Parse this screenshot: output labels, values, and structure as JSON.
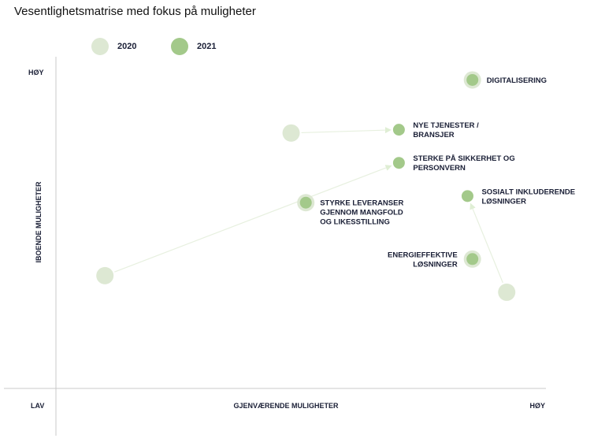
{
  "title": "Vesentlighetsmatrise med fokus på muligheter",
  "chart_data": {
    "type": "scatter",
    "title": "Vesentlighetsmatrise med fokus på muligheter",
    "xlabel": "GJENVÆRENDE MULIGHETER",
    "ylabel": "IBOENDE MULIGHETER",
    "x_tick_labels": {
      "low": "LAV",
      "high": "HØY"
    },
    "y_tick_labels": {
      "high": "HØY"
    },
    "xlim": [
      0,
      100
    ],
    "ylim": [
      0,
      100
    ],
    "legend": {
      "placement": "top-left",
      "entries": [
        "2020",
        "2021"
      ]
    },
    "colors": {
      "2020": "#dde8d3",
      "2021": "#a3c98a",
      "arrow": "#e7f0df"
    },
    "series": [
      {
        "name": "2020",
        "points": [
          {
            "id": "nye-tjenester",
            "x": 48,
            "y": 77
          },
          {
            "id": "sterke-sikkerhet",
            "x": 10,
            "y": 34
          },
          {
            "id": "sosialt-inkluderende",
            "x": 92,
            "y": 29
          },
          {
            "id": "digitalisering",
            "x": 85,
            "y": 93
          },
          {
            "id": "styrke-leveranser",
            "x": 51,
            "y": 56
          },
          {
            "id": "energieffektive",
            "x": 85,
            "y": 39
          }
        ]
      },
      {
        "name": "2021",
        "points": [
          {
            "id": "nye-tjenester",
            "x": 70,
            "y": 78,
            "label": [
              "NYE TJENESTER /",
              "BRANSJER"
            ]
          },
          {
            "id": "sterke-sikkerhet",
            "x": 70,
            "y": 68,
            "label": [
              "STERKE PÅ SIKKERHET OG",
              "PERSONVERN"
            ]
          },
          {
            "id": "sosialt-inkluderende",
            "x": 84,
            "y": 58,
            "label": [
              "SOSIALT INKLUDERENDE",
              "LØSNINGER"
            ]
          },
          {
            "id": "digitalisering",
            "x": 85,
            "y": 93,
            "label": [
              "DIGITALISERING"
            ]
          },
          {
            "id": "styrke-leveranser",
            "x": 51,
            "y": 56,
            "label": [
              "STYRKE LEVERANSER",
              "GJENNOM  MANGFOLD",
              "OG LIKESSTILLING"
            ]
          },
          {
            "id": "energieffektive",
            "x": 85,
            "y": 39,
            "label": [
              "ENERGIEFFEKTIVE",
              "LØSNINGER"
            ],
            "label_side": "left"
          }
        ]
      }
    ]
  }
}
